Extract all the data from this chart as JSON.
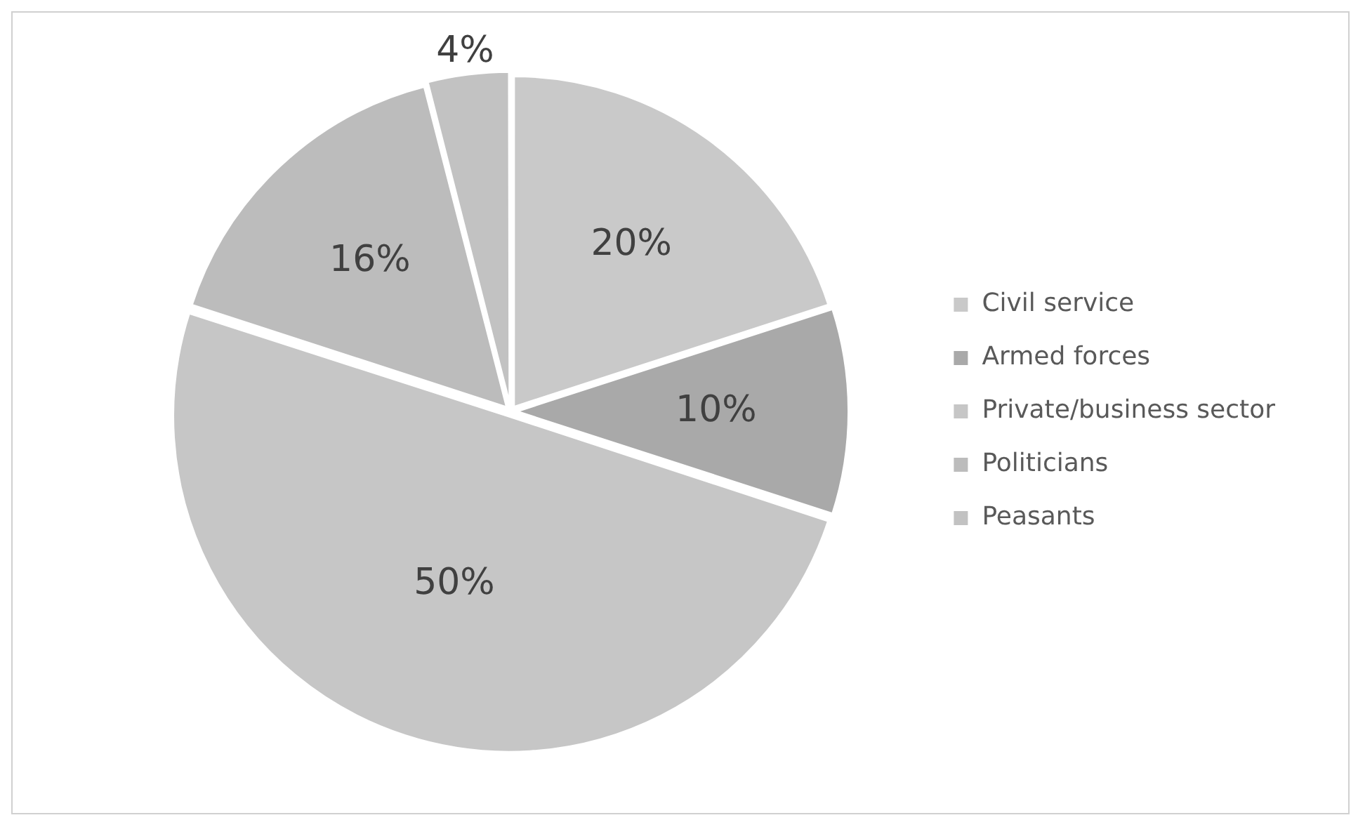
{
  "chart_data": {
    "type": "pie",
    "categories": [
      "Civil service",
      "Armed forces",
      "Private/business sector",
      "Politicians",
      "Peasants"
    ],
    "values": [
      20,
      10,
      50,
      16,
      4
    ],
    "colors": [
      "#c9c9c9",
      "#a9a9a9",
      "#c6c6c6",
      "#bcbcbc",
      "#c2c2c2"
    ],
    "value_labels": [
      "20%",
      "10%",
      "50%",
      "16%",
      "4%"
    ],
    "legend": "right"
  }
}
